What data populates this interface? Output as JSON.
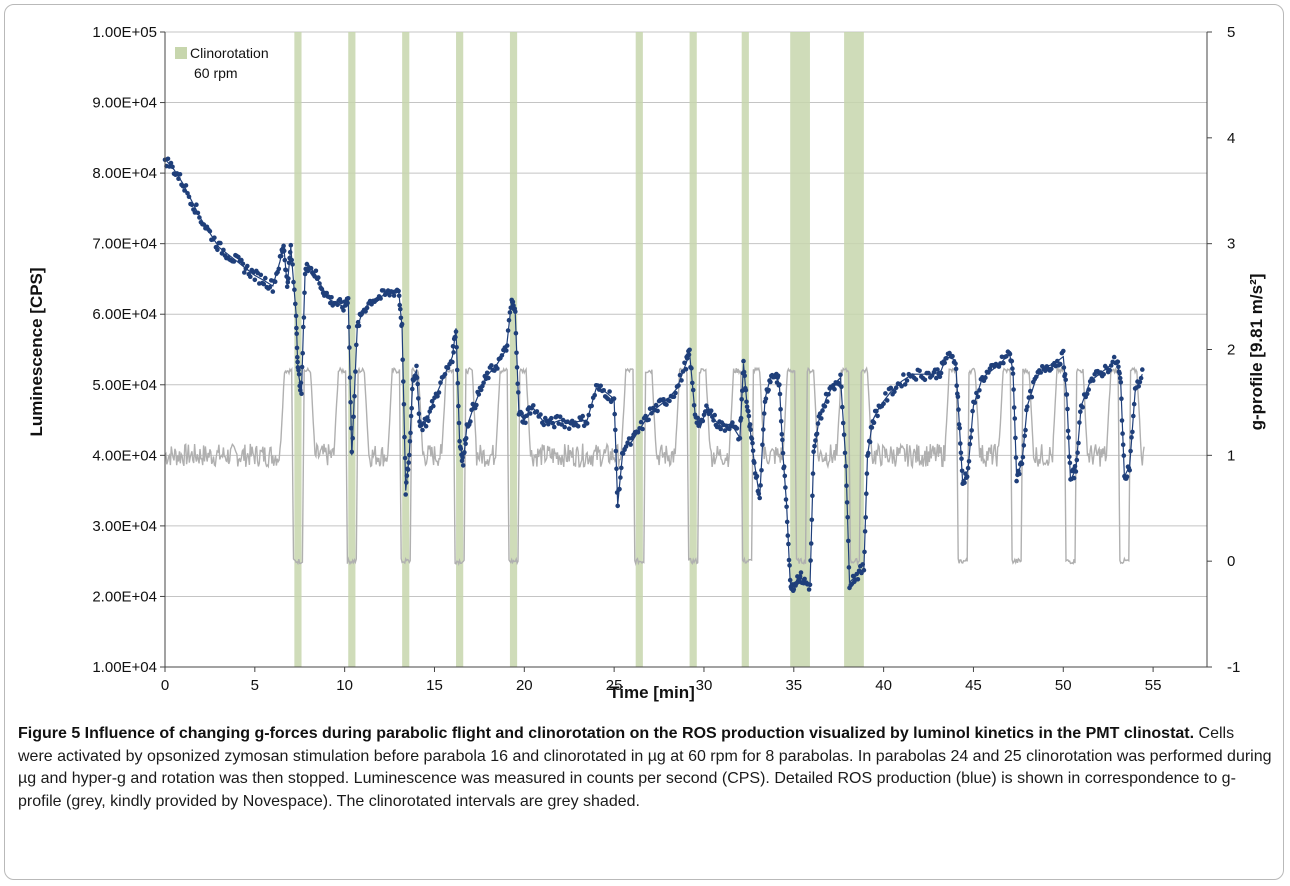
{
  "chart_data": {
    "type": "scatter",
    "x_axis": {
      "label": "Time [min]",
      "range": [
        0,
        58
      ],
      "ticks": [
        "0",
        "5",
        "10",
        "15",
        "20",
        "25",
        "30",
        "35",
        "40",
        "45",
        "50",
        "55"
      ]
    },
    "y_axis_left": {
      "label": "Luminescence [CPS]",
      "range": [
        10000,
        100000
      ],
      "ticks": [
        "1.00E+04",
        "2.00E+04",
        "3.00E+04",
        "4.00E+04",
        "5.00E+04",
        "6.00E+04",
        "7.00E+04",
        "8.00E+04",
        "9.00E+04",
        "1.00E+05"
      ]
    },
    "y_axis_right": {
      "label": "g-profile [9.81 m/s²]",
      "range": [
        -1,
        5
      ],
      "ticks": [
        "-1",
        "0",
        "1",
        "2",
        "3",
        "4",
        "5"
      ]
    },
    "grid": true,
    "legend": {
      "position": "top-left",
      "entries": [
        {
          "label": "Clinorotation",
          "sublabel": "60 rpm",
          "color": "#c7d6ad"
        }
      ]
    },
    "shaded_intervals": [
      [
        7.2,
        7.6
      ],
      [
        10.2,
        10.6
      ],
      [
        13.2,
        13.6
      ],
      [
        16.2,
        16.6
      ],
      [
        19.2,
        19.6
      ],
      [
        26.2,
        26.6
      ],
      [
        29.2,
        29.6
      ],
      [
        32.1,
        32.5
      ],
      [
        34.8,
        35.9
      ],
      [
        37.8,
        38.9
      ]
    ],
    "parabola_starts": [
      7.0,
      10.0,
      13.0,
      16.0,
      19.0,
      26.0,
      29.0,
      32.0,
      35.0,
      38.0,
      44.0,
      47.0,
      50.0,
      53.0
    ],
    "series": [
      {
        "name": "ROS production",
        "color": "#1f3f7a",
        "axis": "left",
        "points": [
          [
            0,
            82000
          ],
          [
            0.5,
            80500
          ],
          [
            1,
            78500
          ],
          [
            1.5,
            76000
          ],
          [
            2,
            73500
          ],
          [
            2.5,
            71500
          ],
          [
            3,
            69500
          ],
          [
            3.5,
            68500
          ],
          [
            4,
            67500
          ],
          [
            4.5,
            66500
          ],
          [
            5,
            65500
          ],
          [
            5.5,
            64800
          ],
          [
            6,
            64000
          ],
          [
            6.4,
            67500
          ],
          [
            6.6,
            70000
          ],
          [
            6.8,
            64000
          ],
          [
            7.0,
            69500
          ],
          [
            7.3,
            60000
          ],
          [
            7.4,
            52000
          ],
          [
            7.6,
            49000
          ],
          [
            7.8,
            66000
          ],
          [
            8.0,
            67000
          ],
          [
            8.4,
            65500
          ],
          [
            8.8,
            63500
          ],
          [
            9.2,
            62000
          ],
          [
            9.6,
            61500
          ],
          [
            10.0,
            61000
          ],
          [
            10.2,
            62500
          ],
          [
            10.4,
            40000
          ],
          [
            10.7,
            58000
          ],
          [
            11.0,
            60500
          ],
          [
            11.5,
            62000
          ],
          [
            12.0,
            62500
          ],
          [
            12.5,
            63000
          ],
          [
            13.0,
            63500
          ],
          [
            13.2,
            58000
          ],
          [
            13.4,
            35000
          ],
          [
            13.6,
            40000
          ],
          [
            13.8,
            51000
          ],
          [
            14.0,
            52000
          ],
          [
            14.2,
            44000
          ],
          [
            14.6,
            45000
          ],
          [
            15.0,
            48000
          ],
          [
            15.5,
            51000
          ],
          [
            16.0,
            54000
          ],
          [
            16.2,
            58000
          ],
          [
            16.4,
            42000
          ],
          [
            16.6,
            39000
          ],
          [
            16.8,
            44000
          ],
          [
            17.2,
            47000
          ],
          [
            17.6,
            49500
          ],
          [
            18.0,
            51500
          ],
          [
            18.5,
            53000
          ],
          [
            19.0,
            55000
          ],
          [
            19.3,
            62000
          ],
          [
            19.5,
            60000
          ],
          [
            19.7,
            46000
          ],
          [
            20.0,
            45000
          ],
          [
            20.4,
            47000
          ],
          [
            21.0,
            45000
          ],
          [
            21.5,
            44500
          ],
          [
            22.0,
            45000
          ],
          [
            22.5,
            44500
          ],
          [
            23.0,
            44800
          ],
          [
            23.5,
            45000
          ],
          [
            24.0,
            49500
          ],
          [
            24.5,
            49000
          ],
          [
            25.0,
            48000
          ],
          [
            25.2,
            33000
          ],
          [
            25.5,
            41000
          ],
          [
            26.0,
            42000
          ],
          [
            26.5,
            44000
          ],
          [
            27.0,
            46000
          ],
          [
            27.5,
            47000
          ],
          [
            28.0,
            48000
          ],
          [
            28.5,
            49500
          ],
          [
            29.0,
            53000
          ],
          [
            29.2,
            54500
          ],
          [
            29.5,
            46000
          ],
          [
            29.8,
            44000
          ],
          [
            30.2,
            47000
          ],
          [
            30.6,
            45000
          ],
          [
            31.0,
            44000
          ],
          [
            31.5,
            44500
          ],
          [
            32.0,
            42500
          ],
          [
            32.2,
            53000
          ],
          [
            32.4,
            47000
          ],
          [
            32.6,
            43000
          ],
          [
            32.8,
            39000
          ],
          [
            33.1,
            34000
          ],
          [
            33.4,
            48000
          ],
          [
            33.7,
            51000
          ],
          [
            34.0,
            51500
          ],
          [
            34.2,
            50000
          ],
          [
            34.4,
            40000
          ],
          [
            34.6,
            33000
          ],
          [
            34.8,
            22000
          ],
          [
            35.0,
            21500
          ],
          [
            35.3,
            23000
          ],
          [
            35.6,
            22000
          ],
          [
            35.9,
            21500
          ],
          [
            36.1,
            40000
          ],
          [
            36.4,
            45000
          ],
          [
            36.8,
            48000
          ],
          [
            37.2,
            50000
          ],
          [
            37.6,
            51000
          ],
          [
            37.9,
            39000
          ],
          [
            38.1,
            22000
          ],
          [
            38.5,
            23000
          ],
          [
            38.9,
            24000
          ],
          [
            39.1,
            40000
          ],
          [
            39.4,
            45000
          ],
          [
            39.8,
            47000
          ],
          [
            40.4,
            49000
          ],
          [
            41.0,
            50500
          ],
          [
            41.6,
            51500
          ],
          [
            42.2,
            51500
          ],
          [
            42.8,
            51500
          ],
          [
            43.2,
            52000
          ],
          [
            43.5,
            54000
          ],
          [
            44.0,
            53500
          ],
          [
            44.2,
            45000
          ],
          [
            44.4,
            36000
          ],
          [
            44.7,
            38000
          ],
          [
            45.0,
            47000
          ],
          [
            45.5,
            51000
          ],
          [
            46.0,
            52000
          ],
          [
            46.5,
            53000
          ],
          [
            47.0,
            54500
          ],
          [
            47.2,
            52000
          ],
          [
            47.4,
            37000
          ],
          [
            47.7,
            39000
          ],
          [
            48.0,
            47000
          ],
          [
            48.5,
            51000
          ],
          [
            49.0,
            52500
          ],
          [
            49.5,
            53000
          ],
          [
            50.0,
            54000
          ],
          [
            50.2,
            48000
          ],
          [
            50.4,
            36500
          ],
          [
            50.7,
            38000
          ],
          [
            51.0,
            47000
          ],
          [
            51.5,
            50500
          ],
          [
            52.0,
            51500
          ],
          [
            52.5,
            52500
          ],
          [
            53.0,
            53500
          ],
          [
            53.2,
            50000
          ],
          [
            53.4,
            37000
          ],
          [
            53.7,
            38500
          ],
          [
            54.0,
            49000
          ],
          [
            54.4,
            51500
          ]
        ]
      },
      {
        "name": "g-profile",
        "color": "#b0b0b0",
        "axis": "right"
      }
    ]
  },
  "caption": {
    "title": "Figure 5 Influence of changing g-forces during parabolic flight and clinorotation on the ROS production visualized by luminol kinetics in the PMT clinostat.",
    "body": " Cells were activated by opsonized zymosan stimulation before parabola 16 and clinorotated in µg at 60 rpm for 8 parabolas. In parabolas 24 and 25 clinorotation was performed during µg and hyper-g and rotation was then stopped. Luminescence was measured in counts per second (CPS). Detailed ROS production (blue) is shown in correspondence to g-profile (grey, kindly provided by Novespace). The clinorotated intervals are grey shaded."
  }
}
